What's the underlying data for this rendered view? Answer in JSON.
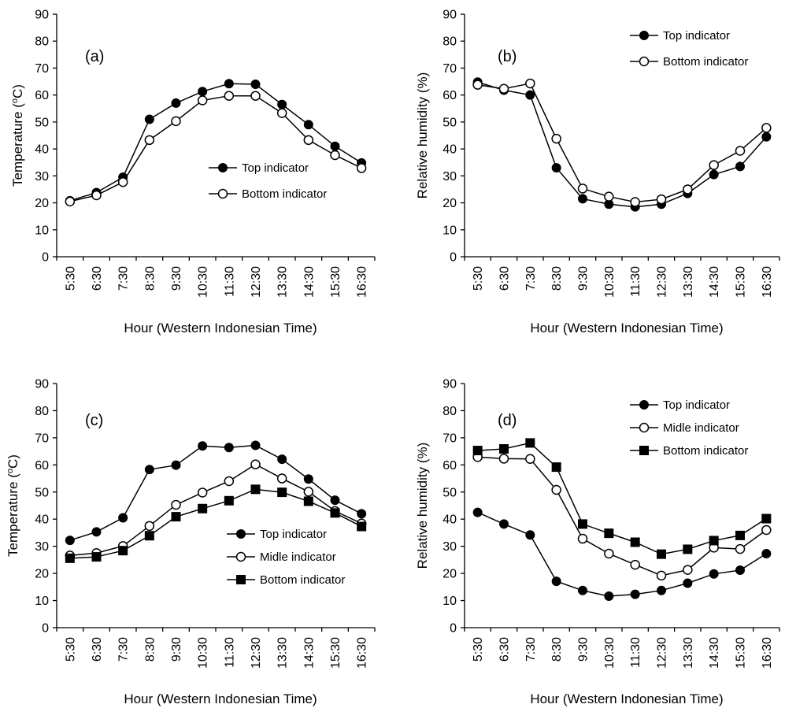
{
  "figure": {
    "x_categories": [
      "5:30",
      "6:30",
      "7:30",
      "8:30",
      "9:30",
      "10:30",
      "11:30",
      "12:30",
      "13:30",
      "14:30",
      "15:30",
      "16:30"
    ],
    "colors": {
      "line": "#000000",
      "filled_marker": "#000000",
      "open_marker": "#ffffff"
    }
  },
  "chart_data": [
    {
      "panel": "(a)",
      "type": "line",
      "xlabel": "Hour (Western Indonesian Time)",
      "ylabel": "Temperature (°C)",
      "ylabel_parts": {
        "pre": "Temperature (",
        "sup": "o",
        "post": "C)"
      },
      "ylim": [
        0,
        90
      ],
      "yticks": [
        0,
        10,
        20,
        30,
        40,
        50,
        60,
        70,
        80,
        90
      ],
      "categories": [
        "5:30",
        "6:30",
        "7:30",
        "8:30",
        "9:30",
        "10:30",
        "11:30",
        "12:30",
        "13:30",
        "14:30",
        "15:30",
        "16:30"
      ],
      "legend_position": "lower-right",
      "grid": false,
      "series": [
        {
          "name": "Top indicator",
          "marker": "filled-circle",
          "values": [
            20.8,
            23.8,
            29.5,
            51.0,
            57.0,
            61.3,
            64.2,
            64.0,
            56.5,
            49.0,
            41.0,
            34.8
          ]
        },
        {
          "name": "Bottom indicator",
          "marker": "open-circle",
          "values": [
            20.5,
            22.8,
            27.7,
            43.3,
            50.3,
            58.0,
            59.7,
            59.7,
            53.3,
            43.3,
            37.7,
            32.9
          ]
        }
      ]
    },
    {
      "panel": "(b)",
      "type": "line",
      "xlabel": "Hour (Western Indonesian Time)",
      "ylabel": "Relative humidity  (%)",
      "ylim": [
        0,
        90
      ],
      "yticks": [
        0,
        10,
        20,
        30,
        40,
        50,
        60,
        70,
        80,
        90
      ],
      "categories": [
        "5:30",
        "6:30",
        "7:30",
        "8:30",
        "9:30",
        "10:30",
        "11:30",
        "12:30",
        "13:30",
        "14:30",
        "15:30",
        "16:30"
      ],
      "legend_position": "top-right",
      "grid": false,
      "series": [
        {
          "name": "Top indicator",
          "marker": "filled-circle",
          "values": [
            64.8,
            61.8,
            60.0,
            33.0,
            21.5,
            19.5,
            18.5,
            19.5,
            23.5,
            30.5,
            33.5,
            44.5
          ]
        },
        {
          "name": "Bottom indicator",
          "marker": "open-circle",
          "values": [
            63.8,
            62.3,
            64.3,
            43.8,
            25.3,
            22.3,
            20.3,
            21.3,
            25.0,
            34.0,
            39.3,
            47.8
          ]
        }
      ]
    },
    {
      "panel": "(c)",
      "type": "line",
      "xlabel": "Hour (Western Indonesian Time)",
      "ylabel": "Temperature (°C)",
      "ylabel_parts": {
        "pre": "Temperature (",
        "sup": "o",
        "post": "C)"
      },
      "ylim": [
        0,
        90
      ],
      "yticks": [
        0,
        10,
        20,
        30,
        40,
        50,
        60,
        70,
        80,
        90
      ],
      "categories": [
        "5:30",
        "6:30",
        "7:30",
        "8:30",
        "9:30",
        "10:30",
        "11:30",
        "12:30",
        "13:30",
        "14:30",
        "15:30",
        "16:30"
      ],
      "legend_position": "lower-right",
      "grid": false,
      "series": [
        {
          "name": "Top indicator",
          "marker": "filled-circle",
          "values": [
            32.2,
            35.3,
            40.5,
            58.3,
            59.9,
            67.0,
            66.4,
            67.2,
            62.1,
            54.8,
            47.0,
            42.0
          ]
        },
        {
          "name": "Midle indicator",
          "marker": "open-circle",
          "values": [
            26.6,
            27.5,
            30.1,
            37.5,
            45.3,
            49.8,
            54.0,
            60.2,
            55.0,
            50.1,
            43.0,
            38.4
          ]
        },
        {
          "name": "Bottom indicator",
          "marker": "filled-square",
          "values": [
            25.6,
            26.1,
            28.4,
            33.9,
            40.9,
            43.9,
            46.8,
            51.0,
            49.9,
            46.6,
            42.3,
            37.3
          ]
        }
      ]
    },
    {
      "panel": "(d)",
      "type": "line",
      "xlabel": "Hour (Western Indonesian Time)",
      "ylabel": "Relative humidity  (%)",
      "ylim": [
        0,
        90
      ],
      "yticks": [
        0,
        10,
        20,
        30,
        40,
        50,
        60,
        70,
        80,
        90
      ],
      "categories": [
        "5:30",
        "6:30",
        "7:30",
        "8:30",
        "9:30",
        "10:30",
        "11:30",
        "12:30",
        "13:30",
        "14:30",
        "15:30",
        "16:30"
      ],
      "legend_position": "top-right",
      "grid": false,
      "series": [
        {
          "name": "Top indicator",
          "marker": "filled-circle",
          "values": [
            42.5,
            38.2,
            34.2,
            17.1,
            13.7,
            11.6,
            12.3,
            13.7,
            16.4,
            19.8,
            21.2,
            27.3
          ]
        },
        {
          "name": "Midle indicator",
          "marker": "open-circle",
          "values": [
            62.9,
            62.3,
            62.2,
            50.8,
            32.8,
            27.3,
            23.2,
            19.2,
            21.3,
            29.5,
            29.0,
            36.0
          ]
        },
        {
          "name": "Bottom indicator",
          "marker": "filled-square",
          "values": [
            65.3,
            65.9,
            68.1,
            59.2,
            38.2,
            34.8,
            31.5,
            27.1,
            28.9,
            32.1,
            34.0,
            40.2
          ]
        }
      ]
    }
  ]
}
